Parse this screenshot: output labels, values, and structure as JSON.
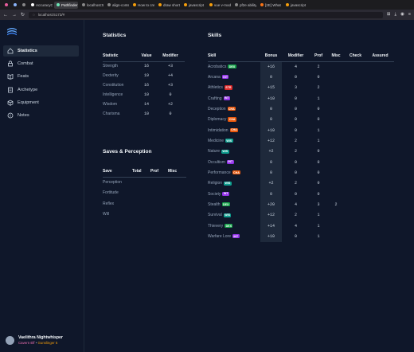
{
  "browser": {
    "tabs": [
      {
        "label": "",
        "color": "#e85d9c"
      },
      {
        "label": "",
        "color": "#8ab4f8"
      },
      {
        "label": "",
        "color": "#888888"
      },
      {
        "label": "AccuracyCo",
        "color": "#ffffff"
      },
      {
        "label": "Pathfinder",
        "color": "#6ee7b7",
        "active": true
      },
      {
        "label": "localhost:5173",
        "color": "#888888"
      },
      {
        "label": "align-conte",
        "color": "#888888"
      },
      {
        "label": "How to cre",
        "color": "#f59e0b"
      },
      {
        "label": "draw short",
        "color": "#f59e0b"
      },
      {
        "label": "javascript",
        "color": "#f59e0b"
      },
      {
        "label": "vue v-mod",
        "color": "#f59e0b"
      },
      {
        "label": "pf2e ability",
        "color": "#888888"
      },
      {
        "label": "[2E] What i",
        "color": "#f97316"
      },
      {
        "label": "javascript",
        "color": "#f59e0b"
      }
    ],
    "url": "localhost:5173/#"
  },
  "sidebar": {
    "nav": [
      {
        "label": "Statistics",
        "icon": "home-icon",
        "active": true
      },
      {
        "label": "Combat",
        "icon": "lock-icon"
      },
      {
        "label": "Feats",
        "icon": "book-icon"
      },
      {
        "label": "Archetype",
        "icon": "document-icon"
      },
      {
        "label": "Equipment",
        "icon": "box-icon"
      },
      {
        "label": "Notes",
        "icon": "info-icon"
      }
    ],
    "profile": {
      "name": "Vaelithra Nightwhisper",
      "ancestry": "Cavern Elf",
      "separator": " • ",
      "class": "Gunslinger 5"
    }
  },
  "statistics": {
    "title": "Statistics",
    "headers": {
      "stat": "Statistic",
      "value": "Value",
      "modifier": "Modifier"
    },
    "rows": [
      {
        "name": "Strength",
        "value": "16",
        "mod": "+3"
      },
      {
        "name": "Dexterity",
        "value": "19",
        "mod": "+4"
      },
      {
        "name": "Constitution",
        "value": "16",
        "mod": "+3"
      },
      {
        "name": "Intelligence",
        "value": "10",
        "mod": "0"
      },
      {
        "name": "Wisdom",
        "value": "14",
        "mod": "+2"
      },
      {
        "name": "Charisma",
        "value": "10",
        "mod": "0"
      }
    ]
  },
  "saves": {
    "title": "Saves & Perception",
    "headers": {
      "save": "Save",
      "total": "Total",
      "prof": "Prof",
      "misc": "Misc"
    },
    "rows": [
      "Perception",
      "Fortitude",
      "Reflex",
      "Will"
    ]
  },
  "skills": {
    "title": "Skills",
    "headers": {
      "skill": "Skill",
      "bonus": "Bonus",
      "modifier": "Modifier",
      "prof": "Prof",
      "misc": "Misc",
      "check": "Check",
      "assured": "Assured"
    },
    "rows": [
      {
        "name": "Acrobatics",
        "attr": "DEX",
        "bonus": "+16",
        "mod": "4",
        "prof": "2",
        "misc": ""
      },
      {
        "name": "Arcana",
        "attr": "INT",
        "bonus": "0",
        "mod": "0",
        "prof": "0",
        "misc": ""
      },
      {
        "name": "Athletics",
        "attr": "STR",
        "bonus": "+15",
        "mod": "3",
        "prof": "2",
        "misc": ""
      },
      {
        "name": "Crafting",
        "attr": "INT",
        "bonus": "+10",
        "mod": "0",
        "prof": "1",
        "misc": ""
      },
      {
        "name": "Deception",
        "attr": "CHA",
        "bonus": "0",
        "mod": "0",
        "prof": "0",
        "misc": ""
      },
      {
        "name": "Diplomacy",
        "attr": "CHA",
        "bonus": "0",
        "mod": "0",
        "prof": "0",
        "misc": ""
      },
      {
        "name": "Intimidation",
        "attr": "CHA",
        "bonus": "+10",
        "mod": "0",
        "prof": "1",
        "misc": ""
      },
      {
        "name": "Medicine",
        "attr": "WIS",
        "bonus": "+12",
        "mod": "2",
        "prof": "1",
        "misc": ""
      },
      {
        "name": "Nature",
        "attr": "WIS",
        "bonus": "+2",
        "mod": "2",
        "prof": "0",
        "misc": ""
      },
      {
        "name": "Occultism",
        "attr": "INT",
        "bonus": "0",
        "mod": "0",
        "prof": "0",
        "misc": ""
      },
      {
        "name": "Performance",
        "attr": "CHA",
        "bonus": "0",
        "mod": "0",
        "prof": "0",
        "misc": ""
      },
      {
        "name": "Religion",
        "attr": "WIS",
        "bonus": "+2",
        "mod": "2",
        "prof": "0",
        "misc": ""
      },
      {
        "name": "Society",
        "attr": "INT",
        "bonus": "0",
        "mod": "0",
        "prof": "0",
        "misc": ""
      },
      {
        "name": "Stealth",
        "attr": "DEX",
        "bonus": "+20",
        "mod": "4",
        "prof": "3",
        "misc": "2"
      },
      {
        "name": "Survival",
        "attr": "WIS",
        "bonus": "+12",
        "mod": "2",
        "prof": "1",
        "misc": ""
      },
      {
        "name": "Thievery",
        "attr": "DEX",
        "bonus": "+14",
        "mod": "4",
        "prof": "1",
        "misc": ""
      },
      {
        "name": "Warfare Lore",
        "attr": "INT",
        "bonus": "+10",
        "mod": "0",
        "prof": "1",
        "misc": ""
      }
    ]
  },
  "colors": {
    "background": "#0f172a",
    "active_nav": "#1e293b",
    "DEX": "#16a34a",
    "INT": "#9333ea",
    "STR": "#dc2626",
    "CHA": "#ea580c",
    "WIS": "#0f9f8f"
  }
}
